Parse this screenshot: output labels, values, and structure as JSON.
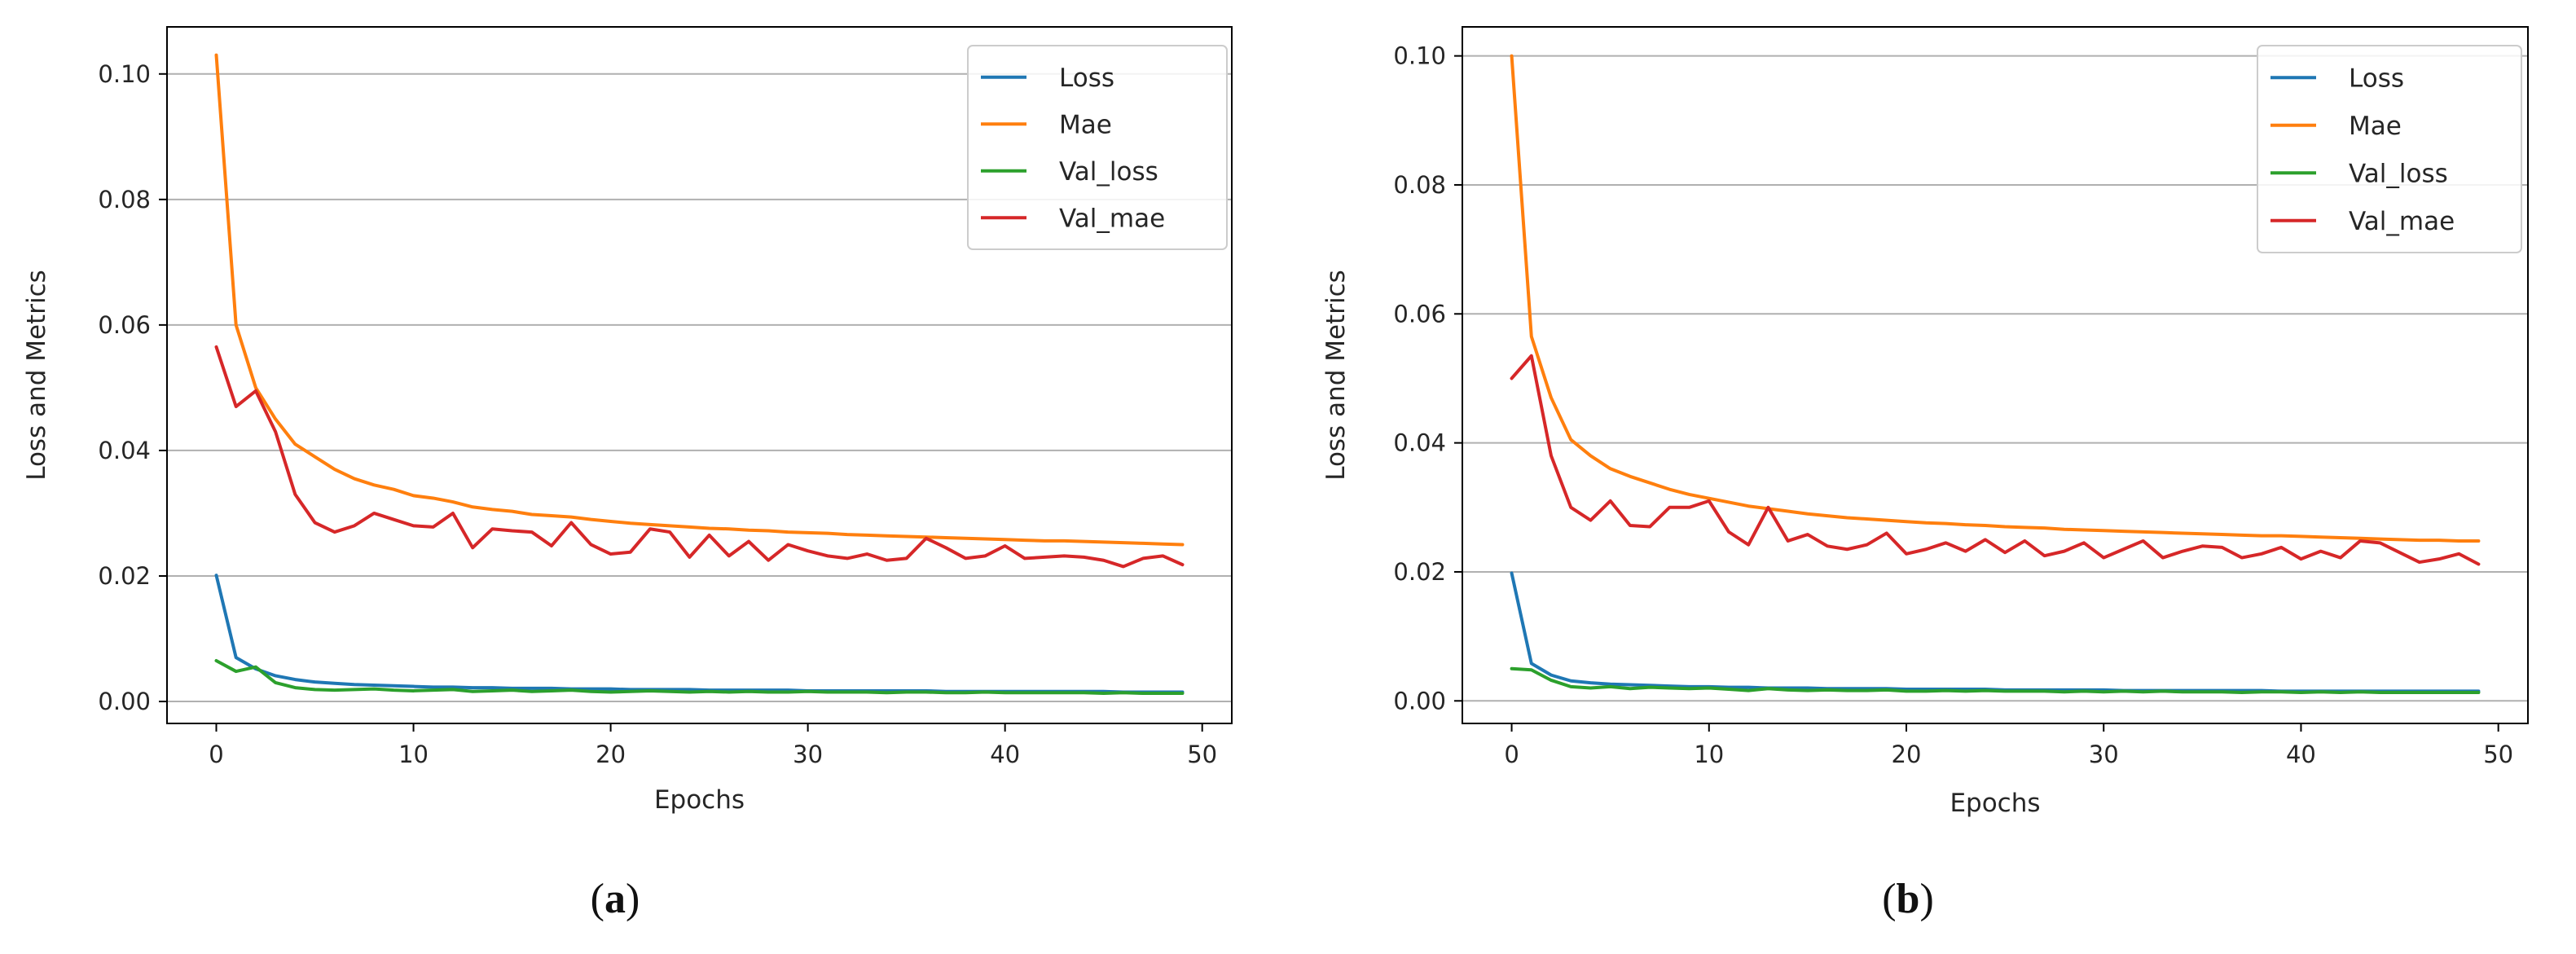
{
  "chart_data": [
    {
      "type": "line",
      "caption": "(a)",
      "caption_parts": [
        "(",
        "a",
        ")"
      ],
      "xlabel": "Epochs",
      "ylabel": "Loss and Metrics",
      "xlim": [
        -2.5,
        51.5
      ],
      "ylim": [
        -0.0035,
        0.1075
      ],
      "xticks": [
        0,
        10,
        20,
        30,
        40,
        50
      ],
      "xtick_labels": [
        "0",
        "10",
        "20",
        "30",
        "40",
        "50"
      ],
      "yticks": [
        0.0,
        0.02,
        0.04,
        0.06,
        0.08,
        0.1
      ],
      "ytick_labels": [
        "0.00",
        "0.02",
        "0.04",
        "0.06",
        "0.08",
        "0.10"
      ],
      "grid": "horizontal",
      "legend_position": "top-right",
      "series": [
        {
          "name": "Loss",
          "color": "#1f77b4",
          "values": [
            0.0201,
            0.007,
            0.0052,
            0.0041,
            0.0035,
            0.0031,
            0.0029,
            0.0027,
            0.0026,
            0.0025,
            0.0024,
            0.0023,
            0.0023,
            0.0022,
            0.0022,
            0.0021,
            0.0021,
            0.0021,
            0.002,
            0.002,
            0.002,
            0.0019,
            0.0019,
            0.0019,
            0.0019,
            0.0018,
            0.0018,
            0.0018,
            0.0018,
            0.0018,
            0.0017,
            0.0017,
            0.0017,
            0.0017,
            0.0017,
            0.0017,
            0.0017,
            0.0016,
            0.0016,
            0.0016,
            0.0016,
            0.0016,
            0.0016,
            0.0016,
            0.0016,
            0.0016,
            0.0015,
            0.0015,
            0.0015,
            0.0015
          ]
        },
        {
          "name": "Mae",
          "color": "#ff7f0e",
          "values": [
            0.103,
            0.06,
            0.05,
            0.045,
            0.041,
            0.039,
            0.037,
            0.0355,
            0.0345,
            0.0338,
            0.0328,
            0.0324,
            0.0318,
            0.031,
            0.0306,
            0.0303,
            0.0298,
            0.0296,
            0.0294,
            0.029,
            0.0287,
            0.0284,
            0.0282,
            0.028,
            0.0278,
            0.0276,
            0.0275,
            0.0273,
            0.0272,
            0.027,
            0.0269,
            0.0268,
            0.0266,
            0.0265,
            0.0264,
            0.0263,
            0.0262,
            0.0261,
            0.026,
            0.0259,
            0.0258,
            0.0257,
            0.0256,
            0.0256,
            0.0255,
            0.0254,
            0.0253,
            0.0252,
            0.0251,
            0.025
          ]
        },
        {
          "name": "Val_loss",
          "color": "#2ca02c",
          "values": [
            0.0065,
            0.0048,
            0.0055,
            0.003,
            0.0022,
            0.0019,
            0.0018,
            0.0019,
            0.002,
            0.0018,
            0.0017,
            0.0018,
            0.0019,
            0.0016,
            0.0017,
            0.0018,
            0.0016,
            0.0017,
            0.0018,
            0.0016,
            0.0015,
            0.0016,
            0.0017,
            0.0016,
            0.0015,
            0.0016,
            0.0015,
            0.0016,
            0.0015,
            0.0015,
            0.0016,
            0.0015,
            0.0015,
            0.0015,
            0.0014,
            0.0015,
            0.0015,
            0.0014,
            0.0014,
            0.0015,
            0.0014,
            0.0014,
            0.0014,
            0.0014,
            0.0014,
            0.0013,
            0.0014,
            0.0013,
            0.0013,
            0.0013
          ]
        },
        {
          "name": "Val_mae",
          "color": "#d62728",
          "values": [
            0.0565,
            0.047,
            0.0495,
            0.043,
            0.033,
            0.0285,
            0.027,
            0.028,
            0.03,
            0.029,
            0.028,
            0.0278,
            0.03,
            0.0245,
            0.0275,
            0.0272,
            0.027,
            0.0248,
            0.0285,
            0.025,
            0.0235,
            0.0238,
            0.0275,
            0.027,
            0.023,
            0.0265,
            0.0232,
            0.0255,
            0.0225,
            0.025,
            0.024,
            0.0232,
            0.0228,
            0.0235,
            0.0225,
            0.0228,
            0.026,
            0.0245,
            0.0228,
            0.0232,
            0.0248,
            0.0228,
            0.023,
            0.0232,
            0.023,
            0.0225,
            0.0215,
            0.0228,
            0.0232,
            0.0218
          ]
        }
      ]
    },
    {
      "type": "line",
      "caption": "(b)",
      "caption_parts": [
        "(",
        "b",
        ")"
      ],
      "xlabel": "Epochs",
      "ylabel": "Loss and Metrics",
      "xlim": [
        -2.5,
        51.5
      ],
      "ylim": [
        -0.0035,
        0.1045
      ],
      "xticks": [
        0,
        10,
        20,
        30,
        40,
        50
      ],
      "xtick_labels": [
        "0",
        "10",
        "20",
        "30",
        "40",
        "50"
      ],
      "yticks": [
        0.0,
        0.02,
        0.04,
        0.06,
        0.08,
        0.1
      ],
      "ytick_labels": [
        "0.00",
        "0.02",
        "0.04",
        "0.06",
        "0.08",
        "0.10"
      ],
      "grid": "horizontal",
      "legend_position": "top-right",
      "series": [
        {
          "name": "Loss",
          "color": "#1f77b4",
          "values": [
            0.0198,
            0.0058,
            0.004,
            0.0031,
            0.0028,
            0.0026,
            0.0025,
            0.0024,
            0.0023,
            0.0022,
            0.0022,
            0.0021,
            0.0021,
            0.002,
            0.002,
            0.002,
            0.0019,
            0.0019,
            0.0019,
            0.0019,
            0.0018,
            0.0018,
            0.0018,
            0.0018,
            0.0018,
            0.0017,
            0.0017,
            0.0017,
            0.0017,
            0.0017,
            0.0017,
            0.0016,
            0.0016,
            0.0016,
            0.0016,
            0.0016,
            0.0016,
            0.0016,
            0.0016,
            0.0015,
            0.0015,
            0.0015,
            0.0015,
            0.0015,
            0.0015,
            0.0015,
            0.0015,
            0.0015,
            0.0015,
            0.0015
          ]
        },
        {
          "name": "Mae",
          "color": "#ff7f0e",
          "values": [
            0.1,
            0.0565,
            0.047,
            0.0405,
            0.038,
            0.036,
            0.0348,
            0.0338,
            0.0328,
            0.032,
            0.0314,
            0.0308,
            0.0302,
            0.0298,
            0.0294,
            0.029,
            0.0287,
            0.0284,
            0.0282,
            0.028,
            0.0278,
            0.0276,
            0.0275,
            0.0273,
            0.0272,
            0.027,
            0.0269,
            0.0268,
            0.0266,
            0.0265,
            0.0264,
            0.0263,
            0.0262,
            0.0261,
            0.026,
            0.0259,
            0.0258,
            0.0257,
            0.0256,
            0.0256,
            0.0255,
            0.0254,
            0.0253,
            0.0252,
            0.0251,
            0.025,
            0.0249,
            0.0249,
            0.0248,
            0.0248
          ]
        },
        {
          "name": "Val_loss",
          "color": "#2ca02c",
          "values": [
            0.005,
            0.0048,
            0.0032,
            0.0022,
            0.002,
            0.0022,
            0.0019,
            0.0021,
            0.002,
            0.0019,
            0.002,
            0.0018,
            0.0016,
            0.0019,
            0.0017,
            0.0016,
            0.0017,
            0.0016,
            0.0016,
            0.0017,
            0.0015,
            0.0015,
            0.0016,
            0.0015,
            0.0016,
            0.0015,
            0.0015,
            0.0015,
            0.0014,
            0.0015,
            0.0014,
            0.0015,
            0.0014,
            0.0015,
            0.0014,
            0.0014,
            0.0014,
            0.0013,
            0.0014,
            0.0014,
            0.0013,
            0.0014,
            0.0013,
            0.0014,
            0.0013,
            0.0013,
            0.0013,
            0.0013,
            0.0013,
            0.0013
          ]
        },
        {
          "name": "Val_mae",
          "color": "#d62728",
          "values": [
            0.05,
            0.0535,
            0.038,
            0.03,
            0.028,
            0.031,
            0.0272,
            0.027,
            0.03,
            0.03,
            0.031,
            0.0262,
            0.0242,
            0.03,
            0.0248,
            0.0258,
            0.024,
            0.0235,
            0.0242,
            0.026,
            0.0228,
            0.0235,
            0.0245,
            0.0232,
            0.025,
            0.023,
            0.0248,
            0.0225,
            0.0232,
            0.0245,
            0.0222,
            0.0235,
            0.0248,
            0.0222,
            0.0232,
            0.024,
            0.0238,
            0.0222,
            0.0228,
            0.0238,
            0.022,
            0.0232,
            0.0222,
            0.0248,
            0.0245,
            0.023,
            0.0215,
            0.022,
            0.0228,
            0.0212
          ]
        }
      ]
    }
  ]
}
